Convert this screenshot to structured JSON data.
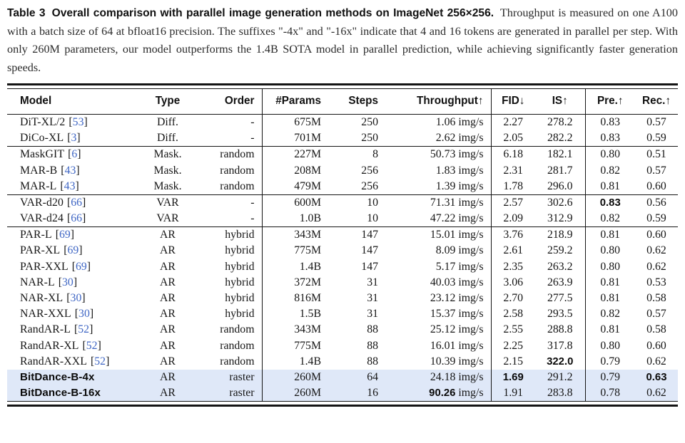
{
  "caption": {
    "label": "Table 3",
    "title": "Overall comparison with parallel image generation methods on ImageNet 256×256.",
    "body": "Throughput is measured on one A100 with a batch size of 64 at bfloat16 precision. The suffixes \"-4x\" and \"-16x\" indicate that 4 and 16 tokens are generated in parallel per step. With only 260M parameters, our model outperforms the 1.4B SOTA model in parallel prediction, while achieving significantly faster generation speeds."
  },
  "colors": {
    "citation_blue": "#3f66c4",
    "highlight_row": "#dfe8f8",
    "rule": "#141414"
  },
  "table": {
    "cite_open": "[",
    "cite_close": "]",
    "throughput_unit": "img/s",
    "columns": [
      {
        "key": "model",
        "label": "Model"
      },
      {
        "key": "type",
        "label": "Type"
      },
      {
        "key": "order",
        "label": "Order"
      },
      {
        "key": "params",
        "label": "#Params"
      },
      {
        "key": "steps",
        "label": "Steps"
      },
      {
        "key": "tp",
        "label": "Throughput↑"
      },
      {
        "key": "fid",
        "label": "FID↓"
      },
      {
        "key": "is",
        "label": "IS↑"
      },
      {
        "key": "pre",
        "label": "Pre.↑"
      },
      {
        "key": "rec",
        "label": "Rec.↑"
      }
    ],
    "groups": [
      {
        "rows": [
          {
            "model": "DiT-XL/2",
            "cite": "53",
            "type": "Diff.",
            "order": "-",
            "params": "675M",
            "steps": "250",
            "tp": "1.06",
            "fid": "2.27",
            "is": "278.2",
            "pre": "0.83",
            "rec": "0.57",
            "bold": []
          },
          {
            "model": "DiCo-XL",
            "cite": "3",
            "type": "Diff.",
            "order": "-",
            "params": "701M",
            "steps": "250",
            "tp": "2.62",
            "fid": "2.05",
            "is": "282.2",
            "pre": "0.83",
            "rec": "0.59",
            "bold": []
          }
        ]
      },
      {
        "rows": [
          {
            "model": "MaskGIT",
            "cite": "6",
            "type": "Mask.",
            "order": "random",
            "params": "227M",
            "steps": "8",
            "tp": "50.73",
            "fid": "6.18",
            "is": "182.1",
            "pre": "0.80",
            "rec": "0.51",
            "bold": []
          },
          {
            "model": "MAR-B",
            "cite": "43",
            "type": "Mask.",
            "order": "random",
            "params": "208M",
            "steps": "256",
            "tp": "1.83",
            "fid": "2.31",
            "is": "281.7",
            "pre": "0.82",
            "rec": "0.57",
            "bold": []
          },
          {
            "model": "MAR-L",
            "cite": "43",
            "type": "Mask.",
            "order": "random",
            "params": "479M",
            "steps": "256",
            "tp": "1.39",
            "fid": "1.78",
            "is": "296.0",
            "pre": "0.81",
            "rec": "0.60",
            "bold": []
          }
        ]
      },
      {
        "rows": [
          {
            "model": "VAR-d20",
            "cite": "66",
            "type": "VAR",
            "order": "-",
            "params": "600M",
            "steps": "10",
            "tp": "71.31",
            "fid": "2.57",
            "is": "302.6",
            "pre": "0.83",
            "rec": "0.56",
            "bold": [
              "pre"
            ]
          },
          {
            "model": "VAR-d24",
            "cite": "66",
            "type": "VAR",
            "order": "-",
            "params": "1.0B",
            "steps": "10",
            "tp": "47.22",
            "fid": "2.09",
            "is": "312.9",
            "pre": "0.82",
            "rec": "0.59",
            "bold": []
          }
        ]
      },
      {
        "rows": [
          {
            "model": "PAR-L",
            "cite": "69",
            "type": "AR",
            "order": "hybrid",
            "params": "343M",
            "steps": "147",
            "tp": "15.01",
            "fid": "3.76",
            "is": "218.9",
            "pre": "0.81",
            "rec": "0.60",
            "bold": []
          },
          {
            "model": "PAR-XL",
            "cite": "69",
            "type": "AR",
            "order": "hybrid",
            "params": "775M",
            "steps": "147",
            "tp": "8.09",
            "fid": "2.61",
            "is": "259.2",
            "pre": "0.80",
            "rec": "0.62",
            "bold": []
          },
          {
            "model": "PAR-XXL",
            "cite": "69",
            "type": "AR",
            "order": "hybrid",
            "params": "1.4B",
            "steps": "147",
            "tp": "5.17",
            "fid": "2.35",
            "is": "263.2",
            "pre": "0.80",
            "rec": "0.62",
            "bold": []
          },
          {
            "model": "NAR-L",
            "cite": "30",
            "type": "AR",
            "order": "hybrid",
            "params": "372M",
            "steps": "31",
            "tp": "40.03",
            "fid": "3.06",
            "is": "263.9",
            "pre": "0.81",
            "rec": "0.53",
            "bold": []
          },
          {
            "model": "NAR-XL",
            "cite": "30",
            "type": "AR",
            "order": "hybrid",
            "params": "816M",
            "steps": "31",
            "tp": "23.12",
            "fid": "2.70",
            "is": "277.5",
            "pre": "0.81",
            "rec": "0.58",
            "bold": []
          },
          {
            "model": "NAR-XXL",
            "cite": "30",
            "type": "AR",
            "order": "hybrid",
            "params": "1.5B",
            "steps": "31",
            "tp": "15.37",
            "fid": "2.58",
            "is": "293.5",
            "pre": "0.82",
            "rec": "0.57",
            "bold": []
          },
          {
            "model": "RandAR-L",
            "cite": "52",
            "type": "AR",
            "order": "random",
            "params": "343M",
            "steps": "88",
            "tp": "25.12",
            "fid": "2.55",
            "is": "288.8",
            "pre": "0.81",
            "rec": "0.58",
            "bold": []
          },
          {
            "model": "RandAR-XL",
            "cite": "52",
            "type": "AR",
            "order": "random",
            "params": "775M",
            "steps": "88",
            "tp": "16.01",
            "fid": "2.25",
            "is": "317.8",
            "pre": "0.80",
            "rec": "0.60",
            "bold": []
          },
          {
            "model": "RandAR-XXL",
            "cite": "52",
            "type": "AR",
            "order": "random",
            "params": "1.4B",
            "steps": "88",
            "tp": "10.39",
            "fid": "2.15",
            "is": "322.0",
            "pre": "0.79",
            "rec": "0.62",
            "bold": [
              "is"
            ]
          },
          {
            "model": "BitDance-B-4x",
            "cite": "",
            "emph": true,
            "hl": true,
            "type": "AR",
            "order": "raster",
            "params": "260M",
            "steps": "64",
            "tp": "24.18",
            "fid": "1.69",
            "is": "291.2",
            "pre": "0.79",
            "rec": "0.63",
            "bold": [
              "fid",
              "rec"
            ]
          },
          {
            "model": "BitDance-B-16x",
            "cite": "",
            "emph": true,
            "hl": true,
            "type": "AR",
            "order": "raster",
            "params": "260M",
            "steps": "16",
            "tp": "90.26",
            "fid": "1.91",
            "is": "283.8",
            "pre": "0.78",
            "rec": "0.62",
            "bold": [
              "tp"
            ]
          }
        ]
      }
    ]
  }
}
